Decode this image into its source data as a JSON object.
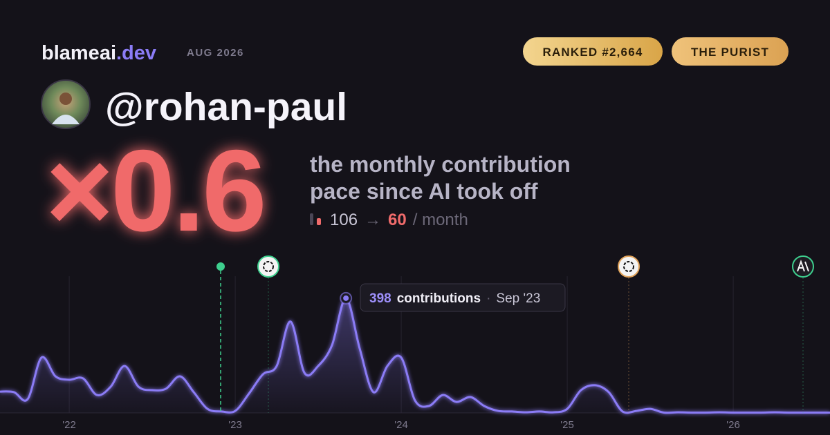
{
  "brand": {
    "name": "blameai",
    "tld": ".dev",
    "period": "AUG 2026"
  },
  "badges": [
    "RANKED #2,664",
    "THE PURIST"
  ],
  "handle": "@rohan-paul",
  "headline": {
    "multiplier": "×0.6",
    "description": [
      "the monthly contribution",
      "pace since AI took off"
    ],
    "before": 106,
    "arrow": "→",
    "after": 60,
    "unit": "/ month"
  },
  "tooltip": {
    "unit": "contributions",
    "separator": "·",
    "date": "Sep '23"
  },
  "chart_data": {
    "type": "area",
    "x": [
      2021.583,
      2021.667,
      2021.75,
      2021.833,
      2021.917,
      2022,
      2022.083,
      2022.167,
      2022.25,
      2022.333,
      2022.417,
      2022.5,
      2022.583,
      2022.667,
      2022.75,
      2022.833,
      2022.917,
      2023,
      2023.083,
      2023.167,
      2023.25,
      2023.333,
      2023.417,
      2023.5,
      2023.583,
      2023.667,
      2023.75,
      2023.833,
      2023.917,
      2024,
      2024.083,
      2024.167,
      2024.25,
      2024.333,
      2024.417,
      2024.5,
      2024.583,
      2024.667,
      2024.75,
      2024.833,
      2024.917,
      2025,
      2025.083,
      2025.167,
      2025.25,
      2025.333,
      2025.417,
      2025.5,
      2025.583,
      2025.667,
      2025.75,
      2025.833,
      2025.917,
      2026,
      2026.083,
      2026.167,
      2026.25,
      2026.333,
      2026.417,
      2026.5,
      2026.583
    ],
    "series": [
      {
        "name": "contributions",
        "color": "#8b7cf6",
        "values": [
          74,
          72,
          48,
          192,
          127,
          115,
          120,
          62,
          91,
          163,
          91,
          79,
          84,
          127,
          72,
          14,
          5,
          7,
          67,
          134,
          163,
          317,
          139,
          163,
          235,
          398,
          223,
          72,
          163,
          192,
          43,
          24,
          62,
          38,
          55,
          24,
          7,
          5,
          2,
          5,
          2,
          14,
          79,
          96,
          72,
          5,
          7,
          14,
          1,
          2,
          1,
          1,
          2,
          1,
          1,
          1,
          2,
          1,
          1,
          1,
          1
        ]
      }
    ],
    "xlim": [
      2021.583,
      2026.583
    ],
    "xticks": [
      {
        "value": 2022,
        "label": "'22"
      },
      {
        "value": 2023,
        "label": "'23"
      },
      {
        "value": 2024,
        "label": "'24"
      },
      {
        "value": 2025,
        "label": "'25"
      },
      {
        "value": 2026,
        "label": "'26"
      }
    ],
    "ylim": [
      0,
      400
    ],
    "grid": true
  }
}
